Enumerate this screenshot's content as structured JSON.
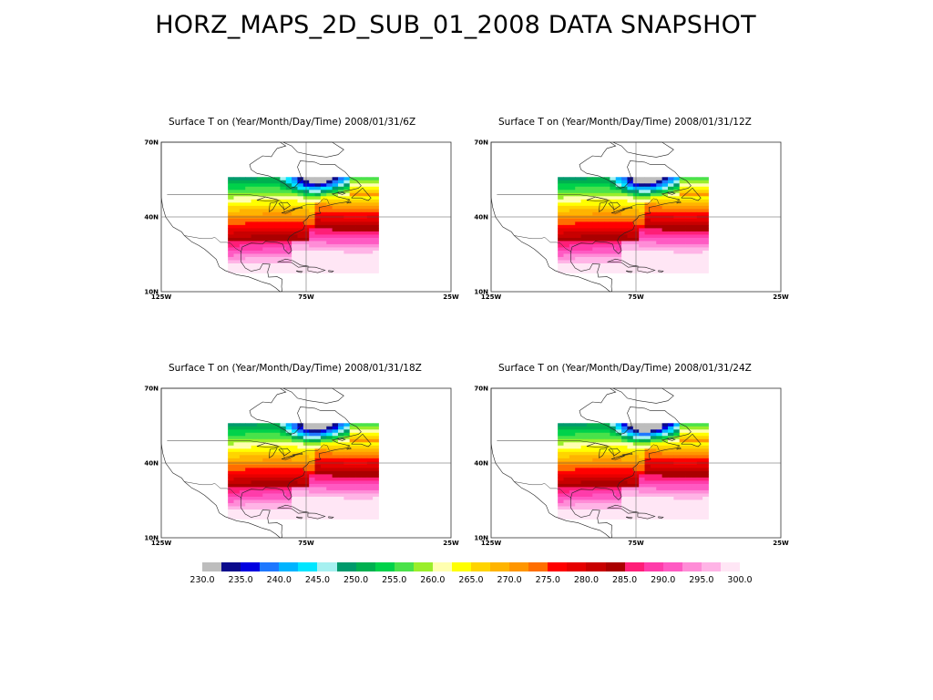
{
  "title": "HORZ_MAPS_2D_SUB_01_2008 DATA SNAPSHOT",
  "panels": [
    {
      "title": "Surface T  on (Year/Month/Day/Time) 2008/01/31/6Z",
      "cold_extent": 0.3
    },
    {
      "title": "Surface T  on (Year/Month/Day/Time) 2008/01/31/12Z",
      "cold_extent": 0.34
    },
    {
      "title": "Surface T  on (Year/Month/Day/Time) 2008/01/31/18Z",
      "cold_extent": 0.38
    },
    {
      "title": "Surface T  on (Year/Month/Day/Time) 2008/01/31/24Z",
      "cold_extent": 0.44
    }
  ],
  "map_axes": {
    "lat_labels": [
      "70N",
      "40N",
      "10N"
    ],
    "lon_labels": [
      "125W",
      "75W",
      "25W"
    ]
  },
  "colorbar": {
    "colors": [
      "#bdbdbd",
      "#0a0a8c",
      "#0000e0",
      "#1e78ff",
      "#00b4ff",
      "#00e6ff",
      "#a6f0f0",
      "#009a6c",
      "#00b050",
      "#00d24a",
      "#4ae24a",
      "#9aee2a",
      "#ffffb0",
      "#ffff00",
      "#ffd400",
      "#ffb400",
      "#ff9600",
      "#ff6e00",
      "#ff0000",
      "#e60000",
      "#c80000",
      "#aa0000",
      "#ff1e78",
      "#ff3caa",
      "#ff5ac3",
      "#ff8cd7",
      "#ffb4e6",
      "#ffe6f5"
    ],
    "labels": [
      "230.0",
      "235.0",
      "240.0",
      "245.0",
      "250.0",
      "255.0",
      "260.0",
      "265.0",
      "270.0",
      "275.0",
      "280.0",
      "285.0",
      "290.0",
      "295.0",
      "300.0"
    ]
  }
}
